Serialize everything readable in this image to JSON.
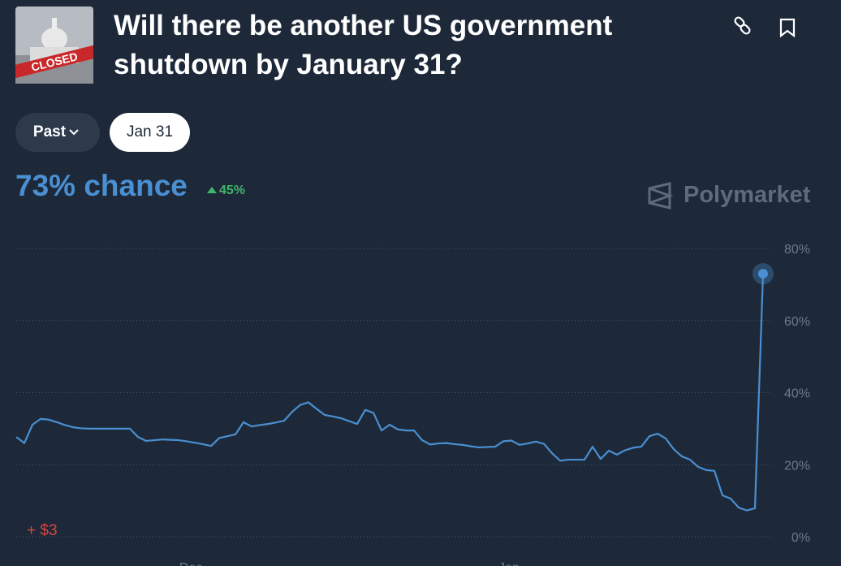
{
  "header": {
    "title": "Will there be another US government shutdown by January 31?",
    "thumbnail_label": "CLOSED"
  },
  "filters": {
    "range": "Past",
    "date": "Jan 31"
  },
  "summary": {
    "chance": {
      "value": 73,
      "label": "73% chance"
    },
    "change": {
      "value": 45,
      "label": "45%"
    },
    "brand": "Polymarket",
    "position": "+ $3"
  },
  "chart_data": {
    "type": "line",
    "color": "#4a8fd1",
    "x_axis_labels": [
      "Dec",
      "Jan"
    ],
    "values": [
      27.7,
      26,
      31.1,
      32.7,
      32.5,
      31.8,
      31,
      30.4,
      30.1,
      30,
      30,
      30,
      30,
      30,
      30,
      27.7,
      26.6,
      26.8,
      27,
      26.9,
      26.8,
      26.5,
      26.1,
      25.7,
      25.2,
      27.4,
      27.9,
      28.4,
      31.8,
      30.6,
      31,
      31.3,
      31.7,
      32.2,
      34.7,
      36.6,
      37.3,
      35.5,
      33.8,
      33.4,
      32.9,
      32.1,
      31.3,
      35.2,
      34.4,
      29.5,
      31.1,
      29.8,
      29.5,
      29.5,
      26.8,
      25.6,
      25.9,
      26,
      25.7,
      25.5,
      25.1,
      24.8,
      24.9,
      25,
      26.5,
      26.7,
      25.5,
      25.9,
      26.4,
      25.8,
      23.2,
      21.1,
      21.4,
      21.4,
      21.4,
      25,
      21.6,
      23.9,
      22.8,
      24,
      24.7,
      25,
      27.9,
      28.6,
      27.3,
      24.3,
      22.3,
      21.4,
      19.4,
      18.5,
      18.3,
      11.5,
      10.6,
      8.1,
      7.3,
      7.9,
      73
    ],
    "ylim": [
      0,
      80
    ],
    "yticks": [
      {
        "value": 0,
        "label": "0%"
      },
      {
        "value": 20,
        "label": "20%"
      },
      {
        "value": 40,
        "label": "40%"
      },
      {
        "value": 60,
        "label": "60%"
      },
      {
        "value": 80,
        "label": "80%"
      }
    ],
    "grid": true
  }
}
